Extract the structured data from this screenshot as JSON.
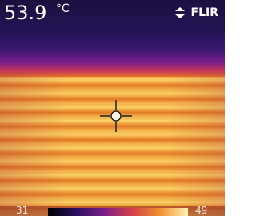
{
  "reading": {
    "value": 53.9,
    "unit": "°C"
  },
  "brand": "FLIR",
  "scale": {
    "min": 31,
    "max": 49
  }
}
